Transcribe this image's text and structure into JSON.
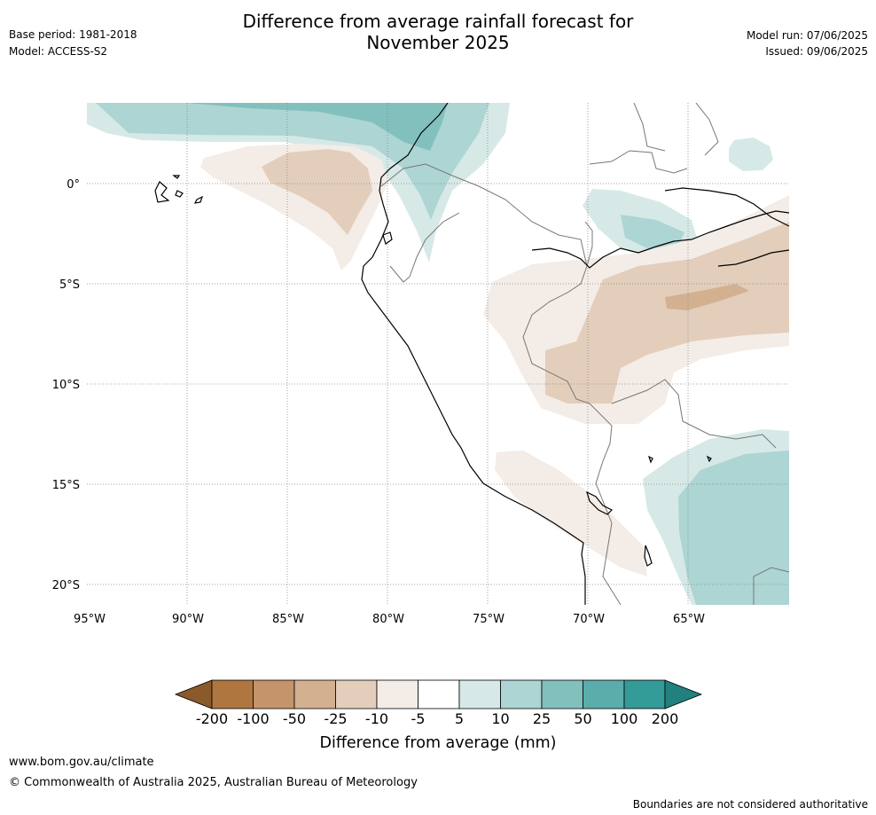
{
  "header": {
    "title_line1": "Difference from average rainfall forecast for",
    "title_line2": "November 2025",
    "base_period": "Base period: 1981-2018",
    "model": "Model: ACCESS-S2",
    "model_run": "Model run: 07/06/2025",
    "issued": "Issued: 09/06/2025"
  },
  "map": {
    "lon_labels": [
      "95°W",
      "90°W",
      "85°W",
      "80°W",
      "75°W",
      "70°W",
      "65°W"
    ],
    "lat_labels": [
      "0°",
      "5°S",
      "10°S",
      "15°S",
      "20°S"
    ],
    "coastline_color": "#000000",
    "border_color": "#777777",
    "gridline_style": "dotted"
  },
  "legend": {
    "title": "Difference from average (mm)",
    "tick_labels": [
      "-200",
      "-100",
      "-50",
      "-25",
      "-10",
      "-5",
      "5",
      "10",
      "25",
      "50",
      "100",
      "200"
    ],
    "colors": [
      "#8a5a2b",
      "#b07640",
      "#c4946a",
      "#d3b190",
      "#e3cebb",
      "#f3ece7",
      "#ffffff",
      "#d6e9e7",
      "#acd5d3",
      "#82c0be",
      "#5aadaa",
      "#339b98",
      "#22807e"
    ]
  },
  "footer": {
    "url": "www.bom.gov.au/climate",
    "copyright": "© Commonwealth of Australia 2025, Australian Bureau of Meteorology",
    "disclaimer": "Boundaries are not considered authoritative"
  }
}
